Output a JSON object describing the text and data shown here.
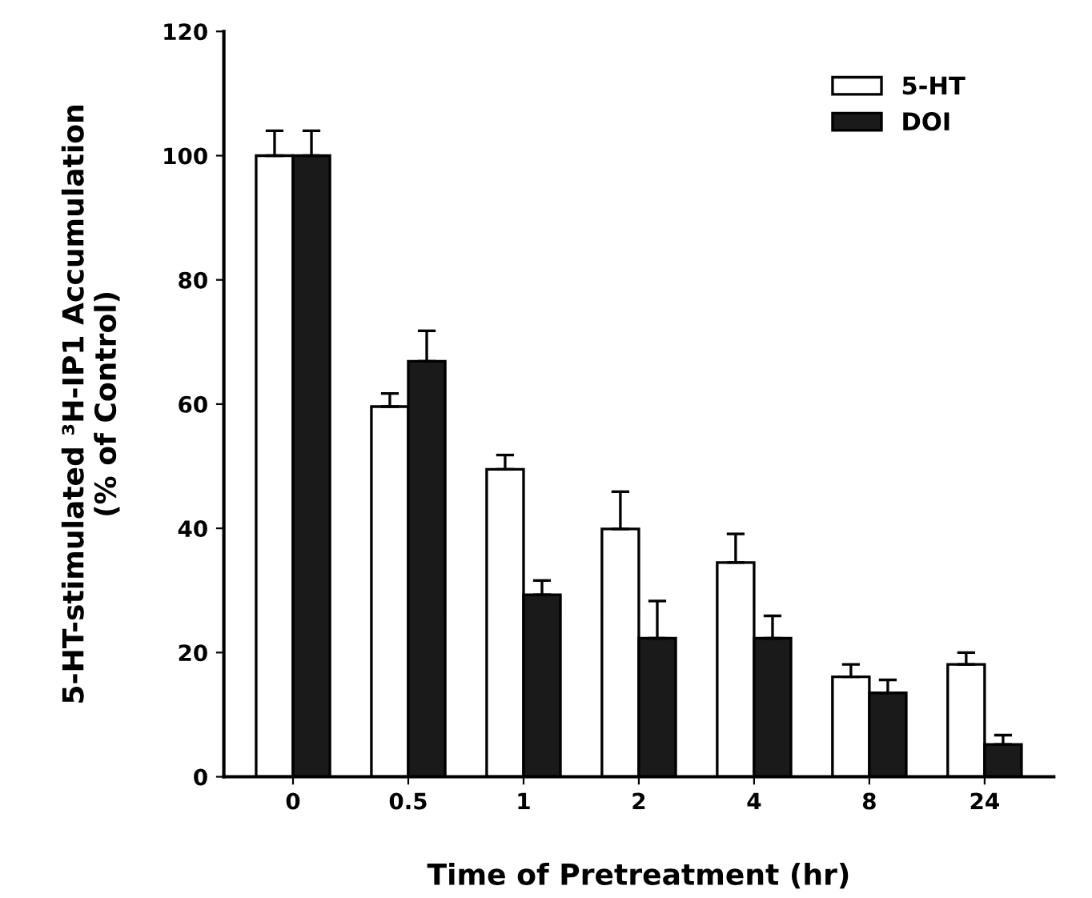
{
  "chart_data": {
    "type": "bar",
    "xlabel": "Time of Pretreatment (hr)",
    "ylabel": "5-HT-stimulated ³H-IP1 Accumulation\n(% of Control)",
    "categories": [
      "0",
      "0.5",
      "1",
      "2",
      "4",
      "8",
      "24"
    ],
    "series": [
      {
        "name": "5-HT",
        "color": "#ffffff",
        "values": [
          100,
          59.6,
          49.5,
          39.9,
          34.5,
          16.1,
          18.1
        ],
        "errors": [
          [
            100,
            104
          ],
          [
            59.6,
            61.7
          ],
          [
            49.5,
            51.8
          ],
          [
            39.9,
            45.9
          ],
          [
            34.5,
            39.1
          ],
          [
            16.1,
            18.1
          ],
          [
            18.1,
            20
          ]
        ]
      },
      {
        "name": "DOI",
        "color": "#1a1a1a",
        "values": [
          100,
          66.9,
          29.3,
          22.3,
          22.3,
          13.5,
          5.2
        ],
        "errors": [
          [
            100,
            104
          ],
          [
            66.9,
            71.8
          ],
          [
            29.3,
            31.6
          ],
          [
            22.3,
            28.3
          ],
          [
            22.3,
            25.9
          ],
          [
            13.5,
            15.6
          ],
          [
            5.2,
            6.7
          ]
        ]
      }
    ],
    "ylim": [
      0,
      120
    ],
    "yticks": [
      0,
      20,
      40,
      60,
      80,
      100,
      120
    ],
    "legend": "top right",
    "grid": false
  }
}
